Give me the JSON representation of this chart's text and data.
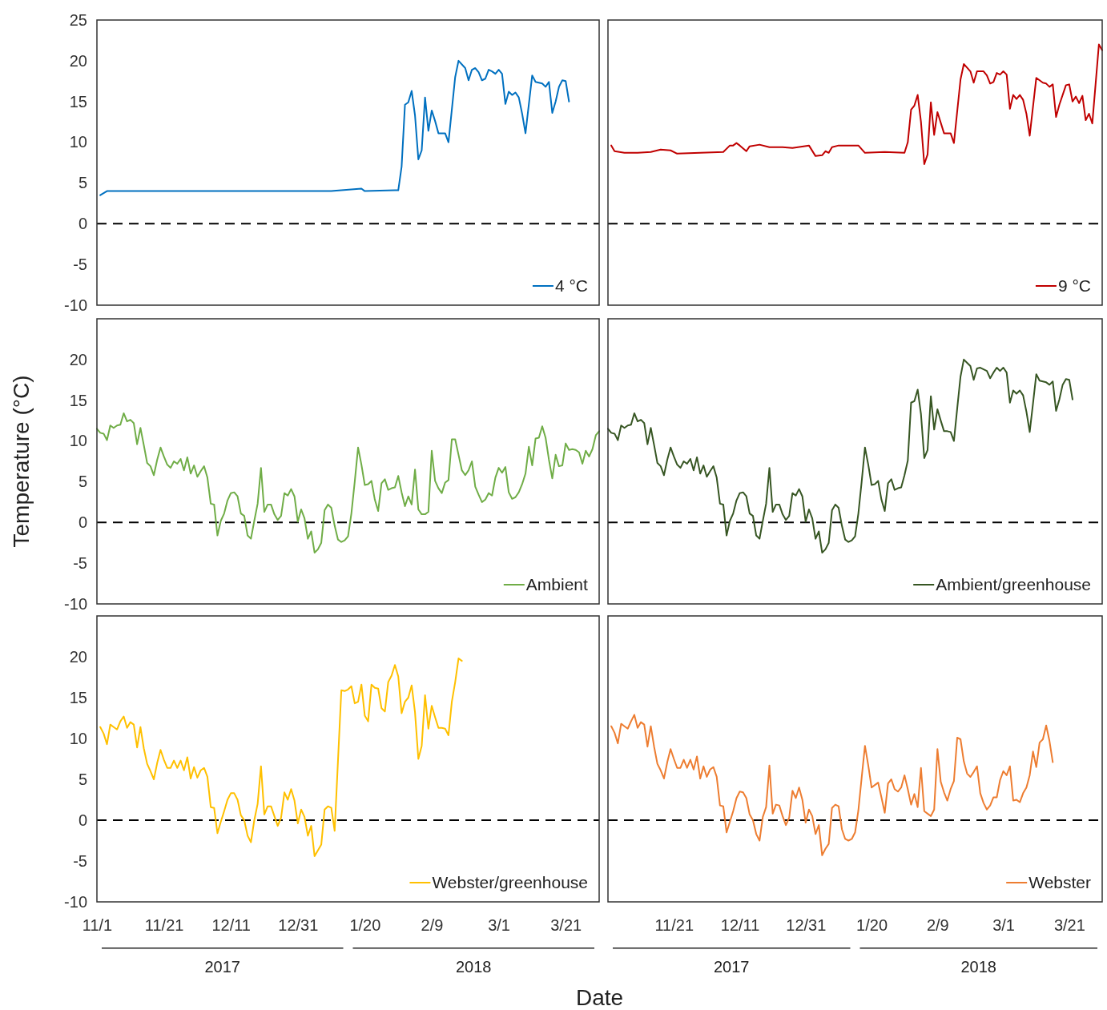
{
  "chart_data": [
    {
      "type": "line",
      "xlim": [
        "2017-11-01",
        "2018-03-31"
      ],
      "ylim": [
        -10,
        25
      ],
      "yticks": [
        -10,
        -5,
        0,
        5,
        10,
        15,
        20,
        25
      ],
      "tick_labels": "y",
      "legend": "bottom right",
      "ref_lines": [
        {
          "axis": "y",
          "value": 0,
          "color": "#000000",
          "line_style": "dashed"
        }
      ],
      "x": [
        "2017-11-02",
        "2017-11-04",
        "2017-11-11",
        "2017-11-21",
        "2017-12-01",
        "2017-12-11",
        "2017-12-21",
        "2017-12-31",
        "2018-01-10",
        "2018-01-19",
        "2018-01-20",
        "2018-01-29",
        "2018-01-30",
        "2018-01-31",
        "2018-02-01",
        "2018-02-02",
        "2018-02-03",
        "2018-02-04",
        "2018-02-05",
        "2018-02-06",
        "2018-02-07",
        "2018-02-08",
        "2018-02-09",
        "2018-02-10",
        "2018-02-11",
        "2018-02-13",
        "2018-02-14",
        "2018-02-16",
        "2018-02-17",
        "2018-02-19",
        "2018-02-20",
        "2018-02-21",
        "2018-02-22",
        "2018-02-23",
        "2018-02-24",
        "2018-02-25",
        "2018-02-26",
        "2018-02-27",
        "2018-02-28",
        "2018-03-01",
        "2018-03-02",
        "2018-03-03",
        "2018-03-04",
        "2018-03-05",
        "2018-03-06",
        "2018-03-07",
        "2018-03-08",
        "2018-03-09",
        "2018-03-11",
        "2018-03-12",
        "2018-03-13",
        "2018-03-14",
        "2018-03-15",
        "2018-03-16",
        "2018-03-17",
        "2018-03-18",
        "2018-03-19",
        "2018-03-20",
        "2018-03-21",
        "2018-03-22"
      ],
      "series": [
        {
          "name": "4 °C",
          "color": "#0070c0",
          "values": [
            3.5,
            4.0,
            4.0,
            4.0,
            4.0,
            4.0,
            4.0,
            4.0,
            4.0,
            4.3,
            4.0,
            4.1,
            4.1,
            7.0,
            14.6,
            14.9,
            16.3,
            13.3,
            7.9,
            9.0,
            15.5,
            11.4,
            13.9,
            12.6,
            11.1,
            11.1,
            10.0,
            18.0,
            20.0,
            19.1,
            17.6,
            18.9,
            19.1,
            18.6,
            17.6,
            17.8,
            18.9,
            18.7,
            18.4,
            18.9,
            18.4,
            14.7,
            16.2,
            15.8,
            16.1,
            15.5,
            13.5,
            11.1,
            18.2,
            17.4,
            17.3,
            17.2,
            16.8,
            17.4,
            13.6,
            15.0,
            16.8,
            17.6,
            17.5,
            15.0
          ]
        }
      ]
    },
    {
      "type": "line",
      "xlim": [
        "2017-11-01",
        "2018-03-31"
      ],
      "ylim": [
        -10,
        25
      ],
      "tick_labels": false,
      "legend": "bottom right",
      "ref_lines": [
        {
          "axis": "y",
          "value": 0,
          "color": "#000000",
          "line_style": "dashed"
        }
      ],
      "x": [
        "2017-11-02",
        "2017-11-03",
        "2017-11-06",
        "2017-11-10",
        "2017-11-14",
        "2017-11-17",
        "2017-11-20",
        "2017-11-22",
        "2017-11-29",
        "2017-12-06",
        "2017-12-08",
        "2017-12-09",
        "2017-12-10",
        "2017-12-11",
        "2017-12-13",
        "2017-12-14",
        "2017-12-17",
        "2017-12-20",
        "2017-12-24",
        "2017-12-27",
        "2018-01-01",
        "2018-01-03",
        "2018-01-05",
        "2018-01-06",
        "2018-01-07",
        "2018-01-08",
        "2018-01-10",
        "2018-01-16",
        "2018-01-18",
        "2018-01-24",
        "2018-01-30",
        "2018-01-31",
        "2018-02-01",
        "2018-02-02",
        "2018-02-03",
        "2018-02-04",
        "2018-02-05",
        "2018-02-06",
        "2018-02-07",
        "2018-02-08",
        "2018-02-09",
        "2018-02-11",
        "2018-02-13",
        "2018-02-14",
        "2018-02-16",
        "2018-02-17",
        "2018-02-19",
        "2018-02-20",
        "2018-02-21",
        "2018-02-23",
        "2018-02-24",
        "2018-02-25",
        "2018-02-26",
        "2018-02-27",
        "2018-02-28",
        "2018-03-01",
        "2018-03-02",
        "2018-03-03",
        "2018-03-04",
        "2018-03-05",
        "2018-03-06",
        "2018-03-07",
        "2018-03-08",
        "2018-03-09",
        "2018-03-11",
        "2018-03-13",
        "2018-03-14",
        "2018-03-15",
        "2018-03-16",
        "2018-03-17",
        "2018-03-18",
        "2018-03-20",
        "2018-03-21",
        "2018-03-22",
        "2018-03-23",
        "2018-03-24",
        "2018-03-25",
        "2018-03-26",
        "2018-03-27",
        "2018-03-28",
        "2018-03-30",
        "2018-03-31"
      ],
      "series": [
        {
          "name": "9 °C",
          "color": "#c00000",
          "values": [
            9.6,
            8.9,
            8.7,
            8.7,
            8.8,
            9.1,
            9.0,
            8.6,
            8.7,
            8.8,
            9.6,
            9.6,
            9.9,
            9.6,
            8.9,
            9.5,
            9.7,
            9.4,
            9.4,
            9.3,
            9.6,
            8.3,
            8.4,
            8.9,
            8.7,
            9.4,
            9.6,
            9.6,
            8.7,
            8.8,
            8.7,
            10.0,
            14.0,
            14.5,
            15.8,
            12.5,
            7.3,
            8.5,
            14.9,
            10.9,
            13.7,
            11.1,
            11.1,
            9.9,
            17.7,
            19.6,
            18.7,
            17.3,
            18.7,
            18.7,
            18.2,
            17.2,
            17.4,
            18.5,
            18.3,
            18.7,
            18.3,
            14.1,
            15.8,
            15.3,
            15.8,
            15.2,
            13.5,
            10.8,
            17.9,
            17.3,
            17.2,
            16.8,
            17.1,
            13.1,
            14.6,
            17.0,
            17.1,
            15.0,
            15.6,
            14.8,
            15.7,
            12.7,
            13.5,
            12.3,
            22.0,
            21.3
          ]
        }
      ]
    },
    {
      "type": "line",
      "xlim": [
        "2017-11-01",
        "2018-03-31"
      ],
      "ylim": [
        -10,
        25
      ],
      "yticks": [
        -10,
        -5,
        0,
        5,
        10,
        15,
        20
      ],
      "tick_labels": "y",
      "legend": "bottom right",
      "ylabel": "Temperature  (°C)",
      "ref_lines": [
        {
          "axis": "y",
          "value": 0,
          "color": "#000000",
          "line_style": "dashed"
        }
      ],
      "x": [
        "2017-11-01",
        "2017-11-02",
        "2017-11-03",
        "2017-11-04",
        "2017-11-05",
        "2017-11-06",
        "2017-11-07",
        "2017-11-08",
        "2017-11-09",
        "2017-11-10",
        "2017-11-11",
        "2017-11-12",
        "2017-11-13",
        "2017-11-14",
        "2017-11-15",
        "2017-11-16",
        "2017-11-17",
        "2017-11-18",
        "2017-11-19",
        "2017-11-20",
        "2017-11-21",
        "2017-11-22",
        "2017-11-23",
        "2017-11-24",
        "2017-11-25",
        "2017-11-26",
        "2017-11-27",
        "2017-11-28",
        "2017-11-29",
        "2017-11-30",
        "2017-12-01",
        "2017-12-02",
        "2017-12-03",
        "2017-12-04",
        "2017-12-05",
        "2017-12-06",
        "2017-12-07",
        "2017-12-08",
        "2017-12-09",
        "2017-12-10",
        "2017-12-11",
        "2017-12-12",
        "2017-12-13",
        "2017-12-14",
        "2017-12-15",
        "2017-12-16",
        "2017-12-17",
        "2017-12-18",
        "2017-12-19",
        "2017-12-20",
        "2017-12-21",
        "2017-12-22",
        "2017-12-23",
        "2017-12-24",
        "2017-12-25",
        "2017-12-26",
        "2017-12-27",
        "2017-12-28",
        "2017-12-29",
        "2017-12-30",
        "2017-12-31",
        "2018-01-01",
        "2018-01-02",
        "2018-01-03",
        "2018-01-04",
        "2018-01-05",
        "2018-01-06",
        "2018-01-07",
        "2018-01-08",
        "2018-01-09",
        "2018-01-10",
        "2018-01-11",
        "2018-01-12",
        "2018-01-13",
        "2018-01-14",
        "2018-01-15",
        "2018-01-16",
        "2018-01-17",
        "2018-01-18",
        "2018-01-19",
        "2018-01-20",
        "2018-01-21",
        "2018-01-22",
        "2018-01-23",
        "2018-01-24",
        "2018-01-25",
        "2018-01-26",
        "2018-01-27",
        "2018-01-28",
        "2018-01-29",
        "2018-01-30",
        "2018-01-31",
        "2018-02-01",
        "2018-02-02",
        "2018-02-03",
        "2018-02-04",
        "2018-02-05",
        "2018-02-06",
        "2018-02-07",
        "2018-02-08",
        "2018-02-09",
        "2018-02-10",
        "2018-02-11",
        "2018-02-12",
        "2018-02-13",
        "2018-02-14",
        "2018-02-15",
        "2018-02-16",
        "2018-02-17",
        "2018-02-18",
        "2018-02-19",
        "2018-02-20",
        "2018-02-21",
        "2018-02-22",
        "2018-02-23",
        "2018-02-24",
        "2018-02-25",
        "2018-02-26",
        "2018-02-27",
        "2018-02-28",
        "2018-03-01",
        "2018-03-02",
        "2018-03-03",
        "2018-03-04",
        "2018-03-05",
        "2018-03-06",
        "2018-03-07",
        "2018-03-08",
        "2018-03-09",
        "2018-03-10",
        "2018-03-11",
        "2018-03-12",
        "2018-03-13",
        "2018-03-14",
        "2018-03-15",
        "2018-03-16",
        "2018-03-17",
        "2018-03-18",
        "2018-03-19",
        "2018-03-20",
        "2018-03-21",
        "2018-03-22",
        "2018-03-23",
        "2018-03-24",
        "2018-03-25",
        "2018-03-26",
        "2018-03-27",
        "2018-03-28",
        "2018-03-29",
        "2018-03-30",
        "2018-03-31"
      ],
      "series": [
        {
          "name": "Ambient",
          "color": "#70ad47",
          "values": [
            11.5,
            11.0,
            10.9,
            10.1,
            11.9,
            11.6,
            11.9,
            12.0,
            13.4,
            12.4,
            12.6,
            12.2,
            9.6,
            11.6,
            9.5,
            7.3,
            6.9,
            5.8,
            7.7,
            9.2,
            8.1,
            7.1,
            6.7,
            7.5,
            7.2,
            7.8,
            6.4,
            8.0,
            6.0,
            7.0,
            5.6,
            6.3,
            6.9,
            5.5,
            2.3,
            2.2,
            -1.6,
            0.2,
            1.1,
            2.7,
            3.6,
            3.7,
            3.2,
            1.1,
            0.8,
            -1.6,
            -2.0,
            0.2,
            2.3,
            6.7,
            1.3,
            2.2,
            2.2,
            1.0,
            0.3,
            0.8,
            3.6,
            3.3,
            4.1,
            3.2,
            0.1,
            1.6,
            0.5,
            -2.0,
            -1.1,
            -3.7,
            -3.3,
            -2.5,
            1.5,
            2.2,
            1.8,
            -0.4,
            -2.1,
            -2.4,
            -2.2,
            -1.7,
            1.1,
            5.0,
            9.2,
            7.1,
            4.6,
            4.7,
            5.1,
            2.8,
            1.4,
            4.8,
            5.3,
            4.0,
            4.2,
            4.3,
            5.7,
            3.7,
            2.0,
            3.2,
            2.2,
            6.5,
            1.6,
            1.0,
            1.0,
            1.3,
            8.8,
            5.1,
            4.2,
            3.6,
            4.9,
            5.2,
            10.2,
            10.2,
            8.3,
            6.4,
            5.8,
            6.4,
            7.5,
            4.4,
            3.4,
            2.5,
            2.8,
            3.6,
            3.3,
            5.5,
            6.7,
            6.1,
            6.8,
            3.7,
            2.9,
            3.1,
            3.7,
            4.7,
            6.0,
            9.3,
            7.0,
            10.3,
            10.4,
            11.8,
            10.4,
            7.7,
            5.4,
            8.3,
            6.9,
            7.0,
            9.7,
            8.9,
            9.0,
            8.9,
            8.6,
            7.2,
            8.8,
            8.1,
            9.0,
            10.7,
            11.2
          ]
        }
      ]
    },
    {
      "type": "line",
      "xlim": [
        "2017-11-01",
        "2018-03-31"
      ],
      "ylim": [
        -10,
        25
      ],
      "tick_labels": false,
      "legend": "bottom right",
      "ref_lines": [
        {
          "axis": "y",
          "value": 0,
          "color": "#000000",
          "line_style": "dashed"
        }
      ],
      "x": [
        "2017-11-01",
        "2017-11-02",
        "2017-11-03",
        "2017-11-04",
        "2017-11-05",
        "2017-11-06",
        "2017-11-07",
        "2017-11-08",
        "2017-11-09",
        "2017-11-10",
        "2017-11-11",
        "2017-11-12",
        "2017-11-13",
        "2017-11-14",
        "2017-11-15",
        "2017-11-16",
        "2017-11-17",
        "2017-11-18",
        "2017-11-19",
        "2017-11-20",
        "2017-11-21",
        "2017-11-22",
        "2017-11-23",
        "2017-11-24",
        "2017-11-25",
        "2017-11-26",
        "2017-11-27",
        "2017-11-28",
        "2017-11-29",
        "2017-11-30",
        "2017-12-01",
        "2017-12-02",
        "2017-12-03",
        "2017-12-04",
        "2017-12-05",
        "2017-12-06",
        "2017-12-07",
        "2017-12-08",
        "2017-12-09",
        "2017-12-10",
        "2017-12-11",
        "2017-12-12",
        "2017-12-13",
        "2017-12-14",
        "2017-12-15",
        "2017-12-16",
        "2017-12-17",
        "2017-12-18",
        "2017-12-19",
        "2017-12-20",
        "2017-12-21",
        "2017-12-22",
        "2017-12-23",
        "2017-12-24",
        "2017-12-25",
        "2017-12-26",
        "2017-12-27",
        "2017-12-28",
        "2017-12-29",
        "2017-12-30",
        "2017-12-31",
        "2018-01-01",
        "2018-01-02",
        "2018-01-03",
        "2018-01-04",
        "2018-01-05",
        "2018-01-06",
        "2018-01-07",
        "2018-01-08",
        "2018-01-09",
        "2018-01-10",
        "2018-01-11",
        "2018-01-12",
        "2018-01-13",
        "2018-01-14",
        "2018-01-15",
        "2018-01-16",
        "2018-01-17",
        "2018-01-18",
        "2018-01-19",
        "2018-01-20",
        "2018-01-21",
        "2018-01-22",
        "2018-01-23",
        "2018-01-24",
        "2018-01-25",
        "2018-01-26",
        "2018-01-27",
        "2018-01-28",
        "2018-01-29",
        "2018-01-30",
        "2018-01-31",
        "2018-02-01",
        "2018-02-02",
        "2018-02-03",
        "2018-02-04",
        "2018-02-05",
        "2018-02-06",
        "2018-02-07",
        "2018-02-08",
        "2018-02-09",
        "2018-02-10",
        "2018-02-11",
        "2018-02-12",
        "2018-02-13",
        "2018-02-14",
        "2018-02-15",
        "2018-02-16",
        "2018-02-17",
        "2018-02-18",
        "2018-02-19",
        "2018-02-20",
        "2018-02-21",
        "2018-02-22",
        "2018-02-23",
        "2018-02-24",
        "2018-02-25",
        "2018-02-26",
        "2018-02-27",
        "2018-02-28",
        "2018-03-01",
        "2018-03-02",
        "2018-03-03",
        "2018-03-04",
        "2018-03-05",
        "2018-03-06",
        "2018-03-07",
        "2018-03-08",
        "2018-03-09",
        "2018-03-10",
        "2018-03-11",
        "2018-03-12",
        "2018-03-13",
        "2018-03-14",
        "2018-03-15",
        "2018-03-16",
        "2018-03-17",
        "2018-03-18",
        "2018-03-19",
        "2018-03-20",
        "2018-03-21",
        "2018-03-22"
      ],
      "series": [
        {
          "name": "Ambient/greenhouse",
          "color": "#375623",
          "values": [
            11.5,
            11.0,
            10.9,
            10.1,
            11.9,
            11.6,
            11.9,
            12.0,
            13.4,
            12.4,
            12.6,
            12.2,
            9.6,
            11.6,
            9.5,
            7.3,
            6.9,
            5.8,
            7.7,
            9.2,
            8.1,
            7.1,
            6.7,
            7.5,
            7.2,
            7.8,
            6.4,
            8.0,
            6.0,
            7.0,
            5.6,
            6.3,
            6.9,
            5.5,
            2.3,
            2.2,
            -1.6,
            0.2,
            1.1,
            2.7,
            3.6,
            3.7,
            3.2,
            1.1,
            0.8,
            -1.6,
            -2.0,
            0.2,
            2.3,
            6.7,
            1.3,
            2.2,
            2.2,
            1.0,
            0.3,
            0.8,
            3.6,
            3.3,
            4.1,
            3.2,
            0.1,
            1.6,
            0.5,
            -2.0,
            -1.1,
            -3.7,
            -3.3,
            -2.5,
            1.5,
            2.2,
            1.8,
            -0.4,
            -2.1,
            -2.4,
            -2.2,
            -1.7,
            1.1,
            5.0,
            9.2,
            7.1,
            4.6,
            4.7,
            5.1,
            2.8,
            1.4,
            4.8,
            5.3,
            4.0,
            4.2,
            4.3,
            5.8,
            7.6,
            14.7,
            14.9,
            16.3,
            13.3,
            7.9,
            8.9,
            15.5,
            11.4,
            13.9,
            12.5,
            11.2,
            11.2,
            11.1,
            10.0,
            14.0,
            17.9,
            20.0,
            19.6,
            19.2,
            17.5,
            18.9,
            19.0,
            18.8,
            18.6,
            17.7,
            18.4,
            19.0,
            18.6,
            19.0,
            18.4,
            14.7,
            16.2,
            15.8,
            16.2,
            15.6,
            13.6,
            11.1,
            14.6,
            18.2,
            17.4,
            17.3,
            17.2,
            16.9,
            17.3,
            13.7,
            15.1,
            16.9,
            17.6,
            17.5,
            15.1
          ]
        }
      ]
    },
    {
      "type": "line",
      "xlim": [
        "2017-11-01",
        "2018-03-31"
      ],
      "ylim": [
        -10,
        25
      ],
      "yticks": [
        -10,
        -5,
        0,
        5,
        10,
        15,
        20
      ],
      "legend": "bottom right",
      "xlabel": "Date",
      "xticks": [
        {
          "value": "2017-11-01",
          "label": "11/1"
        },
        {
          "value": "2017-11-21",
          "label": "11/21"
        },
        {
          "value": "2017-12-11",
          "label": "12/11"
        },
        {
          "value": "2017-12-31",
          "label": "12/31"
        },
        {
          "value": "2018-01-20",
          "label": "1/20"
        },
        {
          "value": "2018-02-09",
          "label": "2/9"
        },
        {
          "value": "2018-03-01",
          "label": "3/1"
        },
        {
          "value": "2018-03-21",
          "label": "3/21"
        }
      ],
      "annotations": [
        "2017",
        "2018"
      ],
      "ref_lines": [
        {
          "axis": "y",
          "value": 0,
          "color": "#000000",
          "line_style": "dashed"
        }
      ],
      "x": [
        "2017-11-02",
        "2017-11-03",
        "2017-11-04",
        "2017-11-05",
        "2017-11-06",
        "2017-11-07",
        "2017-11-08",
        "2017-11-09",
        "2017-11-10",
        "2017-11-11",
        "2017-11-12",
        "2017-11-13",
        "2017-11-14",
        "2017-11-15",
        "2017-11-16",
        "2017-11-17",
        "2017-11-18",
        "2017-11-19",
        "2017-11-20",
        "2017-11-21",
        "2017-11-22",
        "2017-11-23",
        "2017-11-24",
        "2017-11-25",
        "2017-11-26",
        "2017-11-27",
        "2017-11-28",
        "2017-11-29",
        "2017-11-30",
        "2017-12-01",
        "2017-12-02",
        "2017-12-03",
        "2017-12-04",
        "2017-12-05",
        "2017-12-06",
        "2017-12-07",
        "2017-12-08",
        "2017-12-09",
        "2017-12-10",
        "2017-12-11",
        "2017-12-12",
        "2017-12-13",
        "2017-12-14",
        "2017-12-15",
        "2017-12-16",
        "2017-12-17",
        "2017-12-18",
        "2017-12-19",
        "2017-12-20",
        "2017-12-21",
        "2017-12-22",
        "2017-12-23",
        "2017-12-24",
        "2017-12-25",
        "2017-12-26",
        "2017-12-27",
        "2017-12-28",
        "2017-12-29",
        "2017-12-30",
        "2017-12-31",
        "2018-01-01",
        "2018-01-02",
        "2018-01-03",
        "2018-01-04",
        "2018-01-05",
        "2018-01-06",
        "2018-01-07",
        "2018-01-08",
        "2018-01-09",
        "2018-01-10",
        "2018-01-11",
        "2018-01-12",
        "2018-01-13",
        "2018-01-14",
        "2018-01-15",
        "2018-01-16",
        "2018-01-17",
        "2018-01-18",
        "2018-01-19",
        "2018-01-20",
        "2018-01-21",
        "2018-01-22",
        "2018-01-23",
        "2018-01-24",
        "2018-01-25",
        "2018-01-26",
        "2018-01-27",
        "2018-01-28",
        "2018-01-29",
        "2018-01-30",
        "2018-01-31",
        "2018-02-01",
        "2018-02-02",
        "2018-02-03",
        "2018-02-04",
        "2018-02-05",
        "2018-02-06",
        "2018-02-07",
        "2018-02-08",
        "2018-02-09",
        "2018-02-10",
        "2018-02-11",
        "2018-02-12",
        "2018-02-13",
        "2018-02-14",
        "2018-02-15",
        "2018-02-16",
        "2018-02-17",
        "2018-02-18"
      ],
      "series": [
        {
          "name": "Webster/greenhouse",
          "color": "#ffc000",
          "values": [
            11.4,
            10.6,
            9.3,
            11.7,
            11.4,
            11.1,
            12.1,
            12.7,
            11.3,
            12.0,
            11.7,
            8.9,
            11.4,
            8.8,
            6.9,
            6.0,
            5.0,
            7.0,
            8.6,
            7.4,
            6.4,
            6.4,
            7.3,
            6.4,
            7.3,
            6.1,
            7.7,
            5.1,
            6.5,
            5.2,
            6.1,
            6.4,
            5.3,
            1.6,
            1.5,
            -1.6,
            -0.2,
            1.1,
            2.5,
            3.3,
            3.3,
            2.5,
            0.6,
            0.0,
            -1.9,
            -2.7,
            0.0,
            2.0,
            6.6,
            0.7,
            1.7,
            1.7,
            0.5,
            -0.7,
            0.3,
            3.4,
            2.5,
            3.8,
            2.4,
            -0.4,
            1.3,
            0.4,
            -1.9,
            -0.7,
            -4.4,
            -3.7,
            -3.0,
            1.3,
            1.7,
            1.5,
            -1.3,
            7.3,
            15.9,
            15.8,
            16.0,
            16.4,
            14.3,
            14.5,
            16.6,
            12.8,
            12.1,
            16.6,
            16.2,
            16.1,
            13.7,
            13.3,
            16.9,
            17.7,
            19.0,
            17.6,
            13.1,
            14.5,
            15.0,
            16.5,
            13.2,
            7.5,
            9.1,
            15.3,
            11.2,
            14.0,
            12.6,
            11.3,
            11.3,
            11.2,
            10.4,
            14.5,
            16.9,
            19.8,
            19.5
          ]
        }
      ]
    },
    {
      "type": "line",
      "xlim": [
        "2017-11-01",
        "2018-03-31"
      ],
      "ylim": [
        -10,
        25
      ],
      "tick_labels": "x",
      "legend": "bottom right",
      "xticks": [
        {
          "value": "2017-11-21",
          "label": "11/21"
        },
        {
          "value": "2017-12-11",
          "label": "12/11"
        },
        {
          "value": "2017-12-31",
          "label": "12/31"
        },
        {
          "value": "2018-01-20",
          "label": "1/20"
        },
        {
          "value": "2018-02-09",
          "label": "2/9"
        },
        {
          "value": "2018-03-01",
          "label": "3/1"
        },
        {
          "value": "2018-03-21",
          "label": "3/21"
        }
      ],
      "annotations": [
        "2017",
        "2018"
      ],
      "ref_lines": [
        {
          "axis": "y",
          "value": 0,
          "color": "#000000",
          "line_style": "dashed"
        }
      ],
      "x": [
        "2017-11-02",
        "2017-11-03",
        "2017-11-04",
        "2017-11-05",
        "2017-11-06",
        "2017-11-07",
        "2017-11-08",
        "2017-11-09",
        "2017-11-10",
        "2017-11-11",
        "2017-11-12",
        "2017-11-13",
        "2017-11-14",
        "2017-11-15",
        "2017-11-16",
        "2017-11-17",
        "2017-11-18",
        "2017-11-19",
        "2017-11-20",
        "2017-11-21",
        "2017-11-22",
        "2017-11-23",
        "2017-11-24",
        "2017-11-25",
        "2017-11-26",
        "2017-11-27",
        "2017-11-28",
        "2017-11-29",
        "2017-11-30",
        "2017-12-01",
        "2017-12-02",
        "2017-12-03",
        "2017-12-04",
        "2017-12-05",
        "2017-12-06",
        "2017-12-07",
        "2017-12-08",
        "2017-12-09",
        "2017-12-10",
        "2017-12-11",
        "2017-12-12",
        "2017-12-13",
        "2017-12-14",
        "2017-12-15",
        "2017-12-16",
        "2017-12-17",
        "2017-12-18",
        "2017-12-19",
        "2017-12-20",
        "2017-12-21",
        "2017-12-22",
        "2017-12-23",
        "2017-12-24",
        "2017-12-25",
        "2017-12-26",
        "2017-12-27",
        "2017-12-28",
        "2017-12-29",
        "2017-12-30",
        "2017-12-31",
        "2018-01-01",
        "2018-01-02",
        "2018-01-03",
        "2018-01-04",
        "2018-01-05",
        "2018-01-06",
        "2018-01-07",
        "2018-01-08",
        "2018-01-09",
        "2018-01-10",
        "2018-01-11",
        "2018-01-12",
        "2018-01-13",
        "2018-01-14",
        "2018-01-15",
        "2018-01-16",
        "2018-01-17",
        "2018-01-18",
        "2018-01-19",
        "2018-01-20",
        "2018-01-21",
        "2018-01-22",
        "2018-01-23",
        "2018-01-24",
        "2018-01-25",
        "2018-01-26",
        "2018-01-27",
        "2018-01-28",
        "2018-01-29",
        "2018-01-30",
        "2018-01-31",
        "2018-02-01",
        "2018-02-02",
        "2018-02-03",
        "2018-02-04",
        "2018-02-05",
        "2018-02-06",
        "2018-02-07",
        "2018-02-08",
        "2018-02-09",
        "2018-02-10",
        "2018-02-11",
        "2018-02-12",
        "2018-02-13",
        "2018-02-14",
        "2018-02-15",
        "2018-02-16",
        "2018-02-17",
        "2018-02-18",
        "2018-02-19",
        "2018-02-20",
        "2018-02-21",
        "2018-02-22",
        "2018-02-23",
        "2018-02-24",
        "2018-02-25",
        "2018-02-26",
        "2018-02-27",
        "2018-02-28",
        "2018-03-01",
        "2018-03-02",
        "2018-03-03",
        "2018-03-04",
        "2018-03-05",
        "2018-03-06",
        "2018-03-07",
        "2018-03-08",
        "2018-03-09",
        "2018-03-10",
        "2018-03-11",
        "2018-03-12",
        "2018-03-13",
        "2018-03-14",
        "2018-03-15",
        "2018-03-16"
      ],
      "series": [
        {
          "name": "Webster",
          "color": "#ed7d31",
          "values": [
            11.5,
            10.7,
            9.4,
            11.8,
            11.5,
            11.2,
            12.1,
            12.9,
            11.3,
            12.0,
            11.7,
            9.0,
            11.5,
            9.0,
            6.9,
            6.1,
            5.1,
            7.1,
            8.7,
            7.5,
            6.4,
            6.4,
            7.4,
            6.4,
            7.4,
            6.2,
            7.8,
            5.1,
            6.6,
            5.3,
            6.2,
            6.5,
            5.3,
            1.8,
            1.7,
            -1.5,
            -0.2,
            1.1,
            2.7,
            3.5,
            3.4,
            2.7,
            0.7,
            0.0,
            -1.7,
            -2.5,
            0.4,
            1.6,
            6.7,
            0.8,
            1.9,
            1.8,
            0.5,
            -0.6,
            0.3,
            3.6,
            2.7,
            4.0,
            2.5,
            -0.3,
            1.3,
            0.5,
            -1.7,
            -0.6,
            -4.3,
            -3.5,
            -2.9,
            1.5,
            1.9,
            1.7,
            -1.1,
            -2.3,
            -2.5,
            -2.3,
            -1.5,
            1.2,
            5.2,
            9.1,
            6.7,
            4.0,
            4.3,
            4.6,
            2.8,
            0.9,
            4.5,
            5.0,
            3.8,
            3.5,
            4.0,
            5.5,
            3.8,
            1.9,
            3.2,
            1.6,
            6.4,
            1.1,
            0.8,
            0.5,
            1.3,
            8.7,
            4.7,
            3.4,
            2.4,
            3.8,
            4.8,
            10.1,
            9.9,
            7.2,
            5.7,
            5.3,
            5.9,
            6.6,
            3.3,
            2.1,
            1.3,
            1.8,
            2.8,
            2.8,
            4.9,
            6.0,
            5.5,
            6.6,
            2.4,
            2.5,
            2.2,
            3.3,
            4.0,
            5.5,
            8.4,
            6.5,
            9.5,
            9.9,
            11.6,
            9.7,
            7.1
          ]
        }
      ]
    }
  ]
}
